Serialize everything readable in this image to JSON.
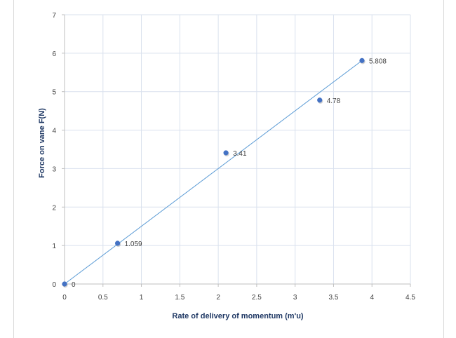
{
  "chart_data": {
    "type": "scatter",
    "title": "",
    "xlabel": "Rate of delivery of momentum (m'u)",
    "ylabel": "Force on vane F(N)",
    "xlim": [
      0,
      4.5
    ],
    "ylim": [
      0,
      7
    ],
    "x_ticks": [
      "0",
      "0.5",
      "1",
      "1.5",
      "2",
      "2.5",
      "3",
      "3.5",
      "4",
      "4.5"
    ],
    "y_ticks": [
      "0",
      "1",
      "2",
      "3",
      "4",
      "5",
      "6",
      "7"
    ],
    "grid": true,
    "legend": "none",
    "series": [
      {
        "points": [
          {
            "x": 0,
            "y": 0,
            "label": "0"
          },
          {
            "x": 0.69,
            "y": 1.059,
            "label": "1.059"
          },
          {
            "x": 2.1,
            "y": 3.41,
            "label": "3.41"
          },
          {
            "x": 3.32,
            "y": 4.78,
            "label": "4.78"
          },
          {
            "x": 3.87,
            "y": 5.808,
            "label": "5.808"
          }
        ],
        "color": "#4472c4"
      }
    ],
    "trendline": {
      "type": "linear",
      "from": [
        0,
        0
      ],
      "to": [
        3.87,
        5.808
      ],
      "color": "#5b9bd5"
    },
    "colors": {
      "grid": "#d9e1ee",
      "axis": "#bfbfbf"
    }
  }
}
